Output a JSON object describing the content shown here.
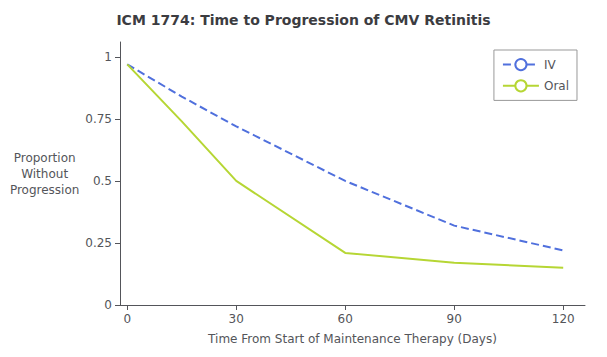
{
  "chart_data": {
    "type": "line",
    "title": "ICM 1774: Time to Progression of CMV Retinitis",
    "xlabel": "Time From Start of Maintenance Therapy (Days)",
    "ylabel": "Proportion\nWithout\nProgression",
    "x": [
      0,
      15,
      30,
      60,
      90,
      120
    ],
    "series": [
      {
        "name": "IV",
        "values": [
          0.97,
          0.84,
          0.72,
          0.5,
          0.32,
          0.22
        ],
        "line_style": "dashed"
      },
      {
        "name": "Oral",
        "values": [
          0.97,
          0.74,
          0.5,
          0.21,
          0.17,
          0.15
        ],
        "line_style": "solid"
      }
    ],
    "xlim": [
      -2,
      126
    ],
    "ylim": [
      0,
      1.06
    ],
    "xticks": [
      0,
      30,
      60,
      90,
      120
    ],
    "yticks": [
      0,
      0.25,
      0.5,
      0.75,
      1
    ],
    "grid": false,
    "legend": "upper right"
  }
}
